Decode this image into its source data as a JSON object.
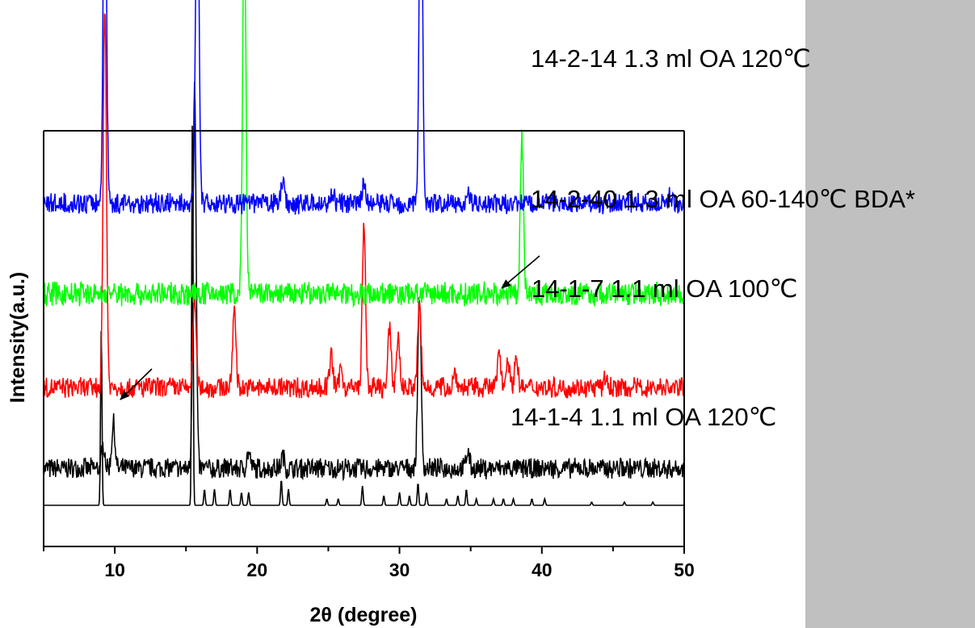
{
  "chart_data": {
    "type": "line",
    "title": "",
    "xlabel": "2θ (degree)",
    "ylabel": "Intensity(a.u.)",
    "xlim": [
      5,
      50
    ],
    "xticks": [
      10,
      20,
      30,
      40,
      50
    ],
    "grid": false,
    "y_units": "arbitrary, stacked patterns",
    "series": [
      {
        "name": "14-2-14 1.3 ml OA 120℃",
        "color": "#0000ff",
        "baseline": 0.82,
        "noise": 0.03,
        "peaks": [
          [
            9.3,
            1.2
          ],
          [
            15.8,
            1.2
          ],
          [
            21.8,
            0.08
          ],
          [
            25.3,
            0.04
          ],
          [
            27.5,
            0.07
          ],
          [
            31.5,
            1.2
          ],
          [
            34.8,
            0.04
          ],
          [
            49.0,
            0.03
          ]
        ]
      },
      {
        "name": "14-2-40 1.3 ml OA 60-140℃ BDA*",
        "color": "#00ff00",
        "baseline": 0.54,
        "noise": 0.035,
        "peaks": [
          [
            19.1,
            1.2
          ],
          [
            38.6,
            0.48
          ]
        ]
      },
      {
        "name": "14-1-7 1.1 ml OA 100℃",
        "color": "#ff0000",
        "baseline": 0.25,
        "noise": 0.03,
        "peaks": [
          [
            9.3,
            1.2
          ],
          [
            15.6,
            0.28
          ],
          [
            18.4,
            0.25
          ],
          [
            25.2,
            0.1
          ],
          [
            25.9,
            0.06
          ],
          [
            27.5,
            0.5
          ],
          [
            29.3,
            0.18
          ],
          [
            29.9,
            0.16
          ],
          [
            31.4,
            0.26
          ],
          [
            33.9,
            0.05
          ],
          [
            37.0,
            0.12
          ],
          [
            37.6,
            0.1
          ],
          [
            38.2,
            0.1
          ],
          [
            44.5,
            0.03
          ]
        ]
      },
      {
        "name": "14-1-4 1.1 ml OA 120℃",
        "color": "#000000",
        "baseline": 0.0,
        "noise": 0.03,
        "peaks": [
          [
            9.2,
            0.07
          ],
          [
            9.9,
            0.14
          ],
          [
            15.6,
            1.2
          ],
          [
            19.4,
            0.05
          ],
          [
            21.8,
            0.04
          ],
          [
            31.4,
            0.55
          ],
          [
            34.8,
            0.05
          ]
        ]
      },
      {
        "name": "",
        "color": "#000000",
        "baseline": -0.11,
        "noise": 0.0,
        "peaks": [
          [
            9.05,
            0.55
          ],
          [
            15.45,
            1.2
          ],
          [
            16.3,
            0.05
          ],
          [
            17.0,
            0.05
          ],
          [
            18.1,
            0.05
          ],
          [
            18.9,
            0.04
          ],
          [
            19.4,
            0.04
          ],
          [
            21.7,
            0.08
          ],
          [
            22.2,
            0.05
          ],
          [
            24.9,
            0.02
          ],
          [
            25.7,
            0.02
          ],
          [
            27.4,
            0.06
          ],
          [
            28.9,
            0.03
          ],
          [
            30.0,
            0.04
          ],
          [
            30.7,
            0.03
          ],
          [
            31.3,
            0.07
          ],
          [
            31.9,
            0.04
          ],
          [
            33.3,
            0.02
          ],
          [
            34.1,
            0.03
          ],
          [
            34.7,
            0.05
          ],
          [
            35.4,
            0.02
          ],
          [
            36.6,
            0.02
          ],
          [
            37.3,
            0.02
          ],
          [
            38.0,
            0.02
          ],
          [
            39.3,
            0.02
          ],
          [
            40.2,
            0.02
          ],
          [
            43.5,
            0.01
          ],
          [
            45.8,
            0.01
          ],
          [
            47.8,
            0.01
          ]
        ]
      }
    ],
    "annotations": [
      {
        "type": "arrow",
        "points_to": [
          10.0,
          "14-1-4 1.1 ml OA 120℃"
        ]
      },
      {
        "type": "arrow",
        "points_to": [
          37.0,
          "14-1-7 1.1 ml OA 100℃"
        ]
      }
    ]
  }
}
